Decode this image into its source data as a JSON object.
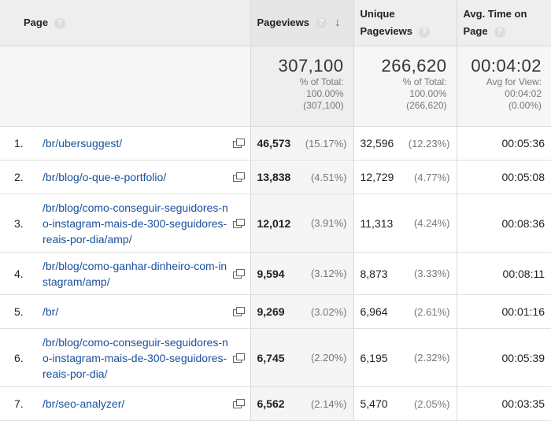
{
  "headers": {
    "page": "Page",
    "pageviews": "Pageviews",
    "unique_line1": "Unique",
    "unique_line2": "Pageviews",
    "avg_line1": "Avg. Time on",
    "avg_line2": "Page",
    "help": "?",
    "sort_arrow": "↓"
  },
  "totals": {
    "pageviews": {
      "value": "307,100",
      "l1": "% of Total:",
      "l2": "100.00%",
      "l3": "(307,100)"
    },
    "unique": {
      "value": "266,620",
      "l1": "% of Total:",
      "l2": "100.00%",
      "l3": "(266,620)"
    },
    "avg": {
      "value": "00:04:02",
      "l1": "Avg for View:",
      "l2": "00:04:02",
      "l3": "(0.00%)"
    }
  },
  "rows": [
    {
      "index": "1.",
      "page": "/br/ubersuggest/",
      "pageviews": "46,573",
      "pv_pct": "(15.17%)",
      "unique": "32,596",
      "u_pct": "(12.23%)",
      "avg_time": "00:05:36"
    },
    {
      "index": "2.",
      "page": "/br/blog/o-que-e-portfolio/",
      "pageviews": "13,838",
      "pv_pct": "(4.51%)",
      "unique": "12,729",
      "u_pct": "(4.77%)",
      "avg_time": "00:05:08"
    },
    {
      "index": "3.",
      "page": "/br/blog/como-conseguir-seguidores-no-instagram-mais-de-300-seguidores-reais-por-dia/amp/",
      "pageviews": "12,012",
      "pv_pct": "(3.91%)",
      "unique": "11,313",
      "u_pct": "(4.24%)",
      "avg_time": "00:08:36"
    },
    {
      "index": "4.",
      "page": "/br/blog/como-ganhar-dinheiro-com-instagram/amp/",
      "pageviews": "9,594",
      "pv_pct": "(3.12%)",
      "unique": "8,873",
      "u_pct": "(3.33%)",
      "avg_time": "00:08:11"
    },
    {
      "index": "5.",
      "page": "/br/",
      "pageviews": "9,269",
      "pv_pct": "(3.02%)",
      "unique": "6,964",
      "u_pct": "(2.61%)",
      "avg_time": "00:01:16"
    },
    {
      "index": "6.",
      "page": "/br/blog/como-conseguir-seguidores-no-instagram-mais-de-300-seguidores-reais-por-dia/",
      "pageviews": "6,745",
      "pv_pct": "(2.20%)",
      "unique": "6,195",
      "u_pct": "(2.32%)",
      "avg_time": "00:05:39"
    },
    {
      "index": "7.",
      "page": "/br/seo-analyzer/",
      "pageviews": "6,562",
      "pv_pct": "(2.14%)",
      "unique": "5,470",
      "u_pct": "(2.05%)",
      "avg_time": "00:03:35"
    }
  ]
}
